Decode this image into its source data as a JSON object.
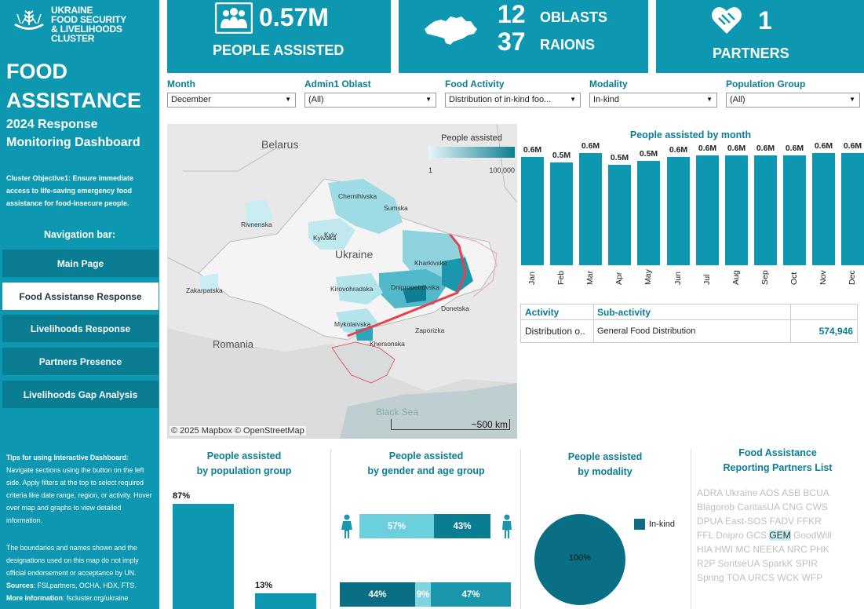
{
  "sidebar": {
    "logo_lines": [
      "UKRAINE",
      "FOOD SECURITY",
      "& LIVELIHOODS CLUSTER"
    ],
    "title_lines": [
      "FOOD",
      "ASSISTANCE"
    ],
    "subtitle_lines": [
      "2024 Response",
      "Monitoring Dashboard"
    ],
    "objective": "Cluster Objective1:  Ensure immediate access to life-saving emergency food assistance for food-insecure people.",
    "nav_title": "Navigation bar:",
    "nav_items": [
      "Main Page",
      "Food Assistanse Response",
      "Livelihoods Response",
      "Partners Presence",
      "Livelihoods Gap Analysis"
    ],
    "tips_title": "Tips for using Interactive Dashboard:",
    "tips_body": "Navigate sections using the button on the left side. Apply filters at the top to select required criteria like date range, region, or activity. Hover over map and graphs to view detailed information.",
    "disclaimer": "The boundaries and names shown and the designations used on this map do not imply official endorsement or acceptance by UN.",
    "sources_label": "Sources",
    "sources_text": ": FSLpartners, OCHA, HDX, FTS.",
    "more_label": "More information",
    "more_text": ": fscluster.org/ukraine"
  },
  "kpis": {
    "people_value": "0.57M",
    "people_label": "PEOPLE ASSISTED",
    "oblasts_value": "12",
    "oblasts_label": "OBLASTS",
    "raions_value": "37",
    "raions_label": "RAIONS",
    "partners_value": "1",
    "partners_label": "PARTNERS"
  },
  "filters": [
    {
      "label": "Month",
      "value": "December"
    },
    {
      "label": "Admin1 Oblast",
      "value": "(All)"
    },
    {
      "label": "Food Activity",
      "value": "Distribution of in-kind foo..."
    },
    {
      "label": "Modality",
      "value": "In-kind"
    },
    {
      "label": "Population Group",
      "value": "(All)"
    }
  ],
  "map": {
    "legend_title": "People assisted",
    "legend_min": "1",
    "legend_max": "100,000",
    "countries": [
      "Belarus",
      "Ukraine",
      "Romania",
      "Black Sea"
    ],
    "regions": [
      "Chernihivska",
      "Sumska",
      "Rivnenska",
      "Kyivska",
      "Kyiv",
      "Kharkivska",
      "Zakarpatska",
      "Kirovohradska",
      "Dnipropetrovska",
      "Donetska",
      "Mykolaivska",
      "Zaporizka",
      "Khersonska"
    ],
    "attribution": "© 2025 Mapbox  © OpenStreetMap",
    "scale": "~500 km"
  },
  "monthly_chart": {
    "title": "People assisted by month",
    "labels": [
      "Jan",
      "Feb",
      "Mar",
      "Apr",
      "May",
      "Jun",
      "Jul",
      "Aug",
      "Sep",
      "Oct",
      "Nov",
      "Dec"
    ],
    "display": [
      "0.6M",
      "0.5M",
      "0.6M",
      "0.5M",
      "0.5M",
      "0.6M",
      "0.6M",
      "0.6M",
      "0.6M",
      "0.6M",
      "0.6M",
      "0.6M"
    ],
    "values": [
      0.57,
      0.54,
      0.59,
      0.53,
      0.55,
      0.57,
      0.58,
      0.58,
      0.58,
      0.58,
      0.59,
      0.59
    ]
  },
  "activity_table": {
    "headers": [
      "Activity",
      "Sub-activity",
      ""
    ],
    "row": [
      "Distribution o..",
      "General Food Distribution",
      "574,946"
    ]
  },
  "pop_group": {
    "title_lines": [
      "People assisted",
      "by population group"
    ],
    "labels": [
      "87%",
      "13%"
    ],
    "values": [
      87,
      13
    ]
  },
  "gender_age": {
    "title_lines": [
      "People assisted",
      "by gender and age group"
    ],
    "row1": [
      "57%",
      "43%"
    ],
    "row1_values": [
      57,
      43
    ],
    "row2": [
      "44%",
      "9%",
      "47%"
    ],
    "row2_values": [
      44,
      9,
      47
    ]
  },
  "modality": {
    "title_lines": [
      "People assisted",
      "by modality"
    ],
    "legend": "In-kind",
    "value": "100%"
  },
  "partners_list": {
    "title_lines": [
      "Food Assistance",
      "Reporting Partners List"
    ],
    "rows": [
      [
        "ADRA Ukraine",
        "AOS",
        "ASB",
        "BCUA"
      ],
      [
        "Blagorob",
        "CaritasUA",
        "CNG",
        "CWS"
      ],
      [
        "DPUA",
        "East-SOS",
        "FADV",
        "FFKR"
      ],
      [
        "FFL Dnipro",
        "GCS",
        "GEM",
        "GoodWill"
      ],
      [
        "HIA",
        "HWI",
        "MC",
        "NEEKA",
        "NRC",
        "PHK"
      ],
      [
        "R2P",
        "SontseUA",
        "SparkK",
        "SPIR"
      ],
      [
        "Spring",
        "TOA",
        "URCS",
        "WCK",
        "WFP"
      ]
    ],
    "highlighted": "GEM"
  },
  "colors": {
    "teal": "#0e97b1",
    "dark_teal": "#0a7d93",
    "light_teal": "#5ac8d8",
    "front_line": "#e8404f"
  },
  "chart_data": [
    {
      "type": "bar",
      "title": "People assisted by month",
      "categories": [
        "Jan",
        "Feb",
        "Mar",
        "Apr",
        "May",
        "Jun",
        "Jul",
        "Aug",
        "Sep",
        "Oct",
        "Nov",
        "Dec"
      ],
      "values": [
        0.57,
        0.54,
        0.59,
        0.53,
        0.55,
        0.57,
        0.58,
        0.58,
        0.58,
        0.58,
        0.59,
        0.59
      ],
      "data_labels": [
        "0.6M",
        "0.5M",
        "0.6M",
        "0.5M",
        "0.5M",
        "0.6M",
        "0.6M",
        "0.6M",
        "0.6M",
        "0.6M",
        "0.6M",
        "0.6M"
      ]
    },
    {
      "type": "bar",
      "title": "People assisted by population group",
      "values": [
        87,
        13
      ],
      "data_labels": [
        "87%",
        "13%"
      ]
    },
    {
      "type": "pie",
      "title": "People assisted by modality",
      "categories": [
        "In-kind"
      ],
      "values": [
        100
      ]
    }
  ]
}
